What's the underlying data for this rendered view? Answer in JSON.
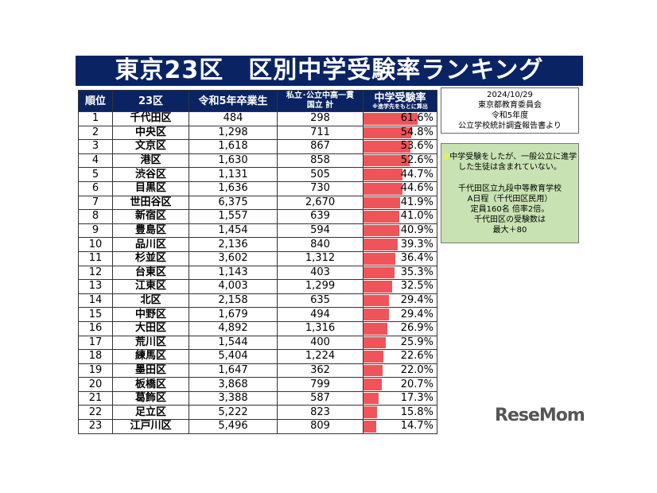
{
  "title": "東京23区　区別中学受験率ランキング",
  "headers": {
    "rank": "順位",
    "ward": "23区",
    "grads": "令和5年卒業生",
    "private": "私立･公立中高一貫",
    "private2": "国立 計",
    "rate": "中学受験率",
    "rate_note": "※進学先をもとに算出"
  },
  "rows": [
    [
      "1",
      "千代田区",
      "484",
      "298",
      "61.6%",
      61.6
    ],
    [
      "2",
      "中央区",
      "1,298",
      "711",
      "54.8%",
      54.8
    ],
    [
      "3",
      "文京区",
      "1,618",
      "867",
      "53.6%",
      53.6
    ],
    [
      "4",
      "港区",
      "1,630",
      "858",
      "52.6%",
      52.6
    ],
    [
      "5",
      "渋谷区",
      "1,131",
      "505",
      "44.7%",
      44.7
    ],
    [
      "6",
      "目黒区",
      "1,636",
      "730",
      "44.6%",
      44.6
    ],
    [
      "7",
      "世田谷区",
      "6,375",
      "2,670",
      "41.9%",
      41.9
    ],
    [
      "8",
      "新宿区",
      "1,557",
      "639",
      "41.0%",
      41.0
    ],
    [
      "9",
      "豊島区",
      "1,454",
      "594",
      "40.9%",
      40.9
    ],
    [
      "10",
      "品川区",
      "2,136",
      "840",
      "39.3%",
      39.3
    ],
    [
      "11",
      "杉並区",
      "3,602",
      "1,312",
      "36.4%",
      36.4
    ],
    [
      "12",
      "台東区",
      "1,143",
      "403",
      "35.3%",
      35.3
    ],
    [
      "13",
      "江東区",
      "4,003",
      "1,299",
      "32.5%",
      32.5
    ],
    [
      "14",
      "北区",
      "2,158",
      "635",
      "29.4%",
      29.4
    ],
    [
      "15",
      "中野区",
      "1,679",
      "494",
      "29.4%",
      29.4
    ],
    [
      "16",
      "大田区",
      "4,892",
      "1,316",
      "26.9%",
      26.9
    ],
    [
      "17",
      "荒川区",
      "1,544",
      "400",
      "25.9%",
      25.9
    ],
    [
      "18",
      "練馬区",
      "5,404",
      "1,224",
      "22.6%",
      22.6
    ],
    [
      "19",
      "墨田区",
      "1,647",
      "362",
      "22.0%",
      22.0
    ],
    [
      "20",
      "板橋区",
      "3,868",
      "799",
      "20.7%",
      20.7
    ],
    [
      "21",
      "葛飾区",
      "3,388",
      "587",
      "17.3%",
      17.3
    ],
    [
      "22",
      "足立区",
      "5,222",
      "823",
      "15.8%",
      15.8
    ],
    [
      "23",
      "江戸川区",
      "5,496",
      "809",
      "14.7%",
      14.7
    ]
  ],
  "source": [
    "2024/10/29",
    "東京都教育委員会",
    "令和5年度",
    "公立学校統計調査報告書より"
  ],
  "note": {
    "mark": "※",
    "line1": "中学受験をしたが、一般公立に進学",
    "line2": "した生徒は含まれていない。",
    "lines": [
      "千代田区立九段中等教育学校",
      "A日程（千代田区民用）",
      "定員160名 倍率2倍。",
      "千代田区の受験数は",
      "最大＋80"
    ]
  },
  "logo": "ReseMom",
  "colors": {
    "header": "#0a2463",
    "bar": "#f0545b",
    "note_bg": "#c9e2b3"
  }
}
